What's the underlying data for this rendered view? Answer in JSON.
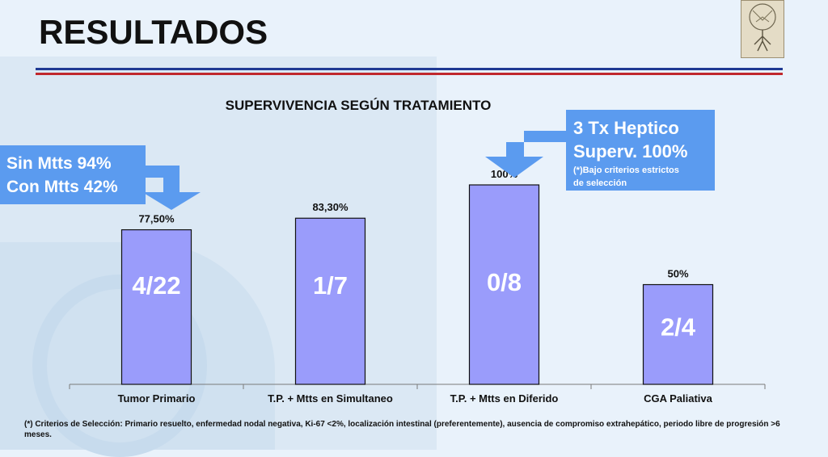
{
  "slide": {
    "title": "RESULTADOS"
  },
  "colors": {
    "bar_fill": "#9a9cfb",
    "bar_stroke": "#111111",
    "callout_fill": "#5b9bef",
    "rule_blue": "#1f3a93",
    "rule_red": "#c0282d"
  },
  "chart_data": {
    "type": "bar",
    "title": "SUPERVIVENCIA SEGÚN TRATAMIENTO",
    "xlabel": "",
    "ylabel": "",
    "ylim": [
      0,
      110
    ],
    "grid": false,
    "categories": [
      "Tumor Primario",
      "T.P. + Mtts en Simultaneo",
      "T.P. + Mtts en Diferido",
      "CGA Paliativa"
    ],
    "values": [
      77.5,
      83.3,
      100,
      50
    ],
    "data_labels": [
      "77,50%",
      "83,30%",
      "100%",
      "50%"
    ],
    "inner_labels": [
      "4/22",
      "1/7",
      "0/8",
      "2/4"
    ]
  },
  "callouts": {
    "left": {
      "line1": "Sin Mtts 94%",
      "line2": "Con Mtts 42%"
    },
    "right": {
      "line1": "3 Tx Heptico",
      "line2": "Superv. 100%",
      "note1": "(*)Bajo criterios estrictos",
      "note2": "de selección"
    }
  },
  "footnote": "(*) Criterios de Selección: Primario resuelto, enfermedad nodal negativa, Ki-67 <2%, localización intestinal (preferentemente), ausencia de compromiso extrahepático, periodo libre de progresión >6 meses."
}
